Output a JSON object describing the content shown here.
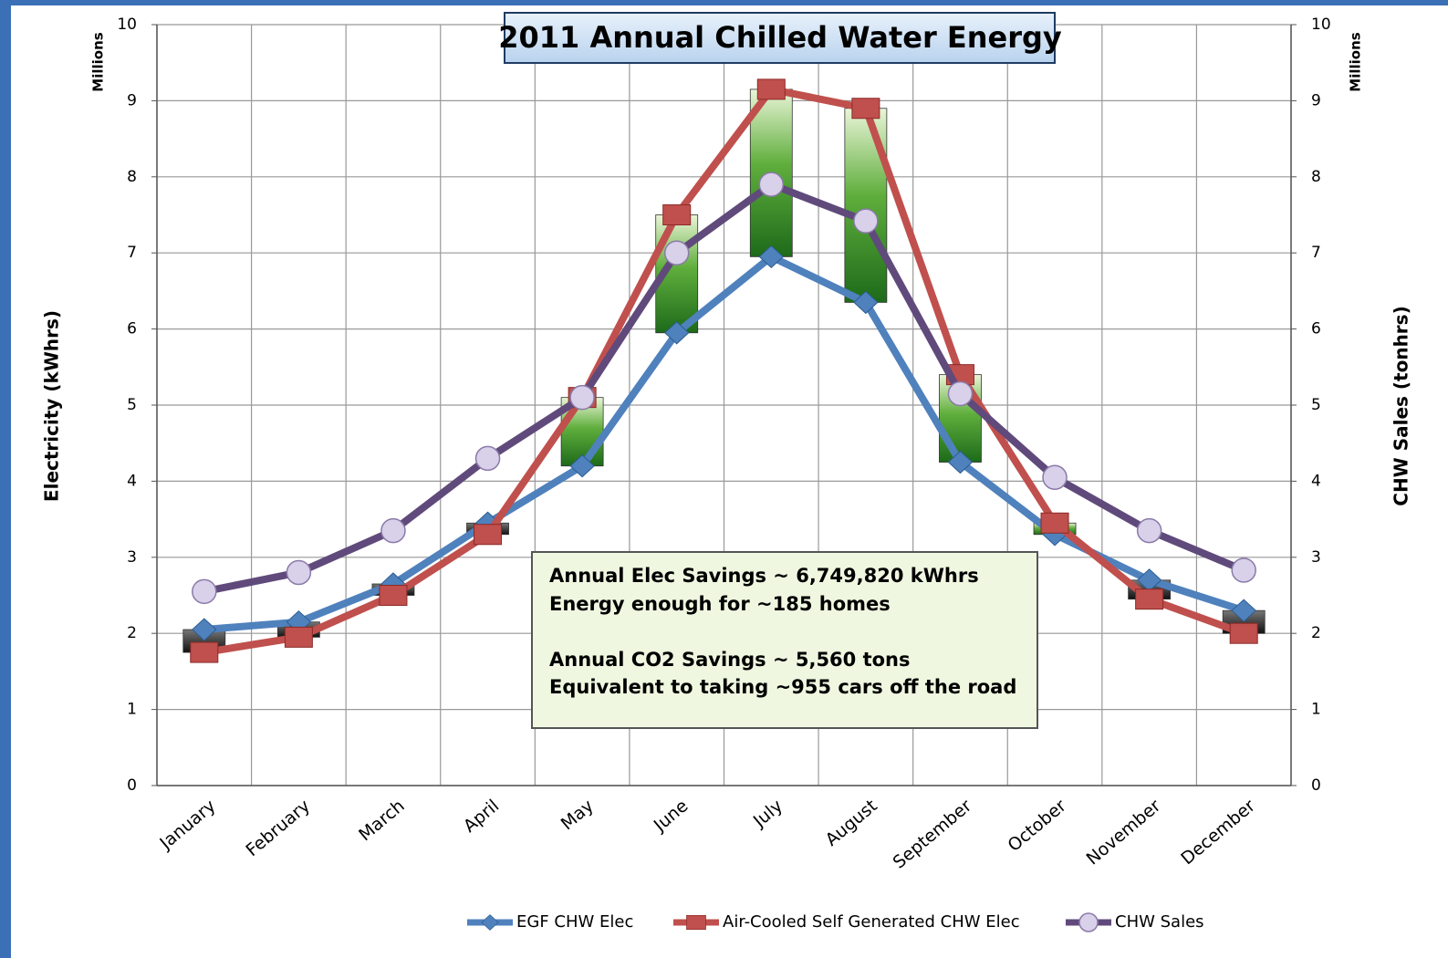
{
  "chart_data": {
    "type": "line",
    "title": "2011 Annual Chilled Water Energy",
    "y_label": "Electricity (kWhrs)",
    "y2_label": "CHW Sales (tonhrs)",
    "y_unit": "Millions",
    "y2_unit": "Millions",
    "categories": [
      "January",
      "February",
      "March",
      "April",
      "May",
      "June",
      "July",
      "August",
      "September",
      "October",
      "November",
      "December"
    ],
    "series": [
      {
        "name": "EGF CHW Elec",
        "color": "#4f81bd",
        "values": [
          2.05,
          2.15,
          2.65,
          3.45,
          4.2,
          5.95,
          6.95,
          6.35,
          4.25,
          3.3,
          2.7,
          2.3
        ]
      },
      {
        "name": "Air-Cooled Self Generated CHW Elec",
        "color": "#c0504d",
        "values": [
          1.75,
          1.95,
          2.5,
          3.3,
          5.1,
          7.5,
          9.15,
          8.9,
          5.4,
          3.45,
          2.45,
          2.0
        ]
      },
      {
        "name": "CHW Sales",
        "color": "#604a7b",
        "axis": "y2",
        "values": [
          2.55,
          2.8,
          3.35,
          4.3,
          5.1,
          7.0,
          7.9,
          7.42,
          5.15,
          4.05,
          3.35,
          2.83
        ]
      }
    ],
    "up_down_bars": true,
    "ylim": [
      0,
      10
    ],
    "yticks": [
      0,
      1,
      2,
      3,
      4,
      5,
      6,
      7,
      8,
      9,
      10
    ],
    "y2lim": [
      0,
      10
    ],
    "y2ticks": [
      0,
      1,
      2,
      3,
      4,
      5,
      6,
      7,
      8,
      9,
      10
    ],
    "grid": true,
    "legend": "bottom",
    "annotation": [
      "Annual Elec Savings ~ 6,749,820 kWhrs",
      "Energy enough for ~185 homes",
      "Annual CO2 Savings ~ 5,560 tons",
      "Equivalent to taking ~955 cars off the road"
    ]
  }
}
